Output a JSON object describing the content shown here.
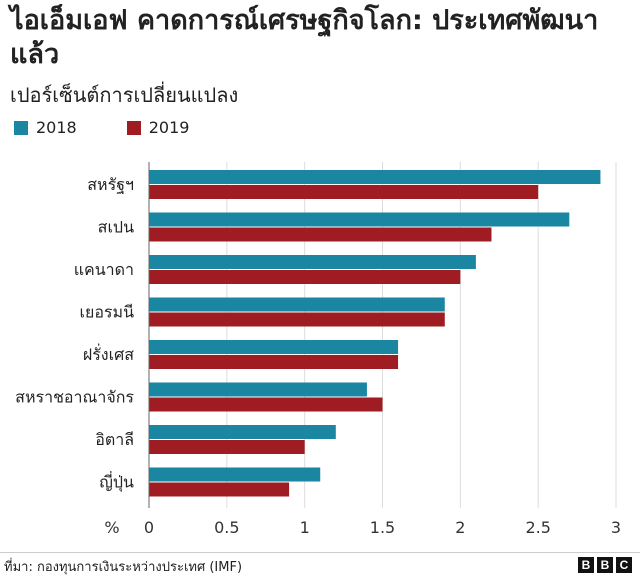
{
  "header": {
    "title": "ไอเอ็มเอฟ คาดการณ์เศรษฐกิจโลก: ประเทศพัฒนาแล้ว",
    "subtitle": "เปอร์เซ็นต์การเปลี่ยนแปลง"
  },
  "colors": {
    "series_2018": "#1a86a2",
    "series_2019": "#9e1c22"
  },
  "chart_data": {
    "type": "bar",
    "orientation": "horizontal",
    "categories": [
      "สหรัฐฯ",
      "สเปน",
      "แคนาดา",
      "เยอรมนี",
      "ฝรั่งเศส",
      "สหราชอาณาจักร",
      "อิตาลี",
      "ญี่ปุ่น"
    ],
    "series": [
      {
        "name": "2018",
        "values": [
          2.9,
          2.7,
          2.1,
          1.9,
          1.6,
          1.4,
          1.2,
          1.1
        ]
      },
      {
        "name": "2019",
        "values": [
          2.5,
          2.2,
          2.0,
          1.9,
          1.6,
          1.5,
          1.0,
          0.9
        ]
      }
    ],
    "xlabel": "%",
    "xlim": [
      0,
      3
    ],
    "xticks": [
      "0",
      "0.5",
      "1",
      "1.5",
      "2",
      "2.5",
      "3"
    ],
    "grid": true,
    "legend": "top-left"
  },
  "footer": {
    "source": "ที่มา: กองทุนการเงินระหว่างประเทศ (IMF)",
    "logo": "BBC"
  }
}
